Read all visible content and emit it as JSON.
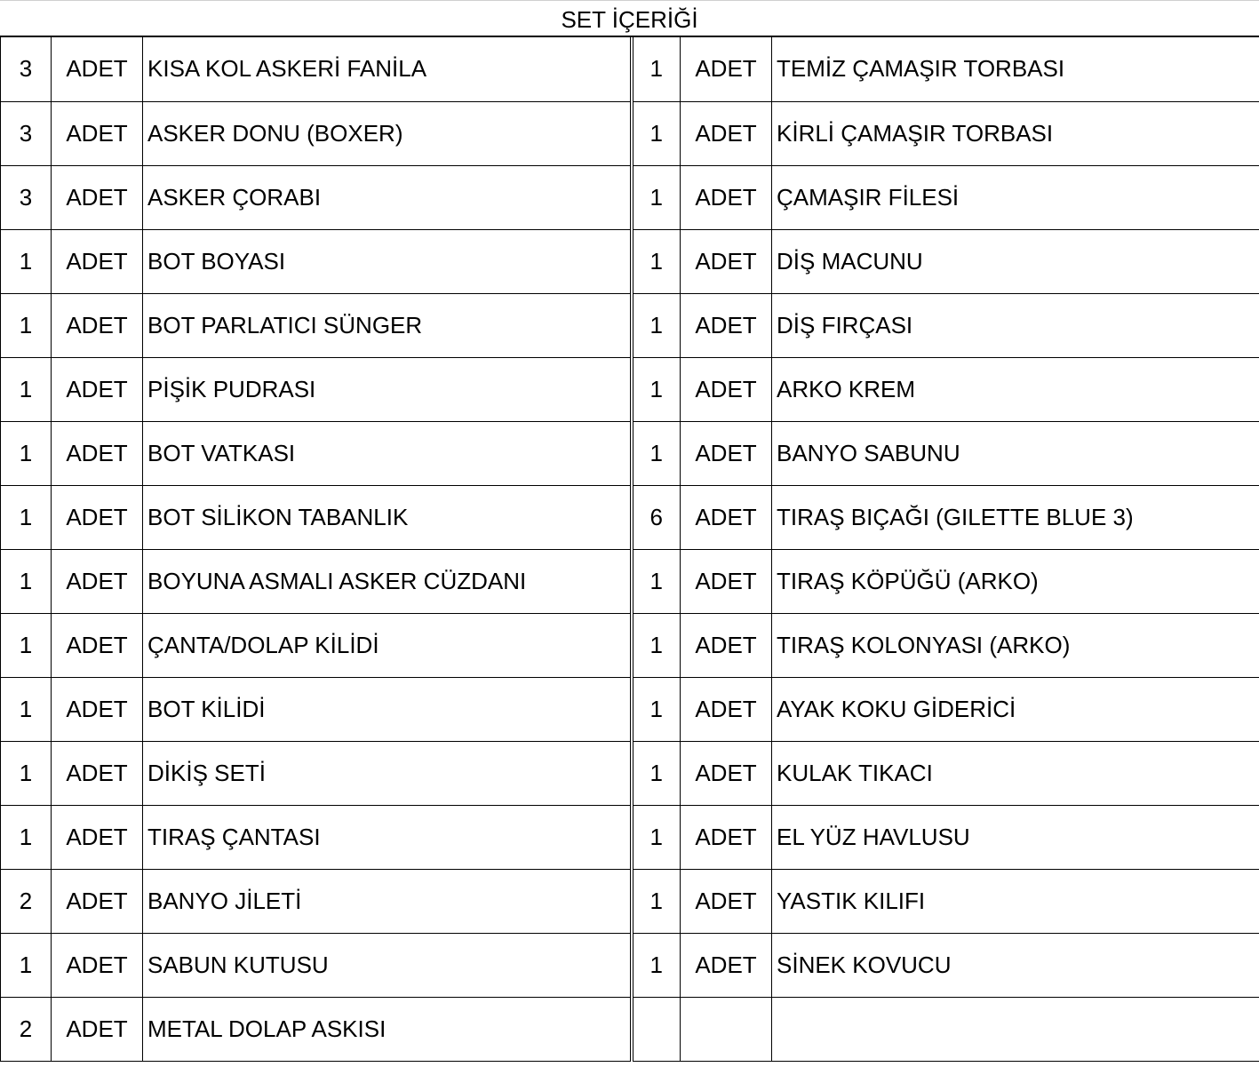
{
  "title": "SET İÇERİĞİ",
  "left": [
    {
      "qty": "3",
      "unit": "ADET",
      "name": "KISA KOL ASKERİ FANİLA"
    },
    {
      "qty": "3",
      "unit": "ADET",
      "name": "ASKER DONU (BOXER)"
    },
    {
      "qty": "3",
      "unit": "ADET",
      "name": "ASKER ÇORABI"
    },
    {
      "qty": "1",
      "unit": "ADET",
      "name": "BOT BOYASI"
    },
    {
      "qty": "1",
      "unit": "ADET",
      "name": "BOT PARLATICI SÜNGER"
    },
    {
      "qty": "1",
      "unit": "ADET",
      "name": "PİŞİK PUDRASI"
    },
    {
      "qty": "1",
      "unit": "ADET",
      "name": "BOT VATKASI"
    },
    {
      "qty": "1",
      "unit": "ADET",
      "name": "BOT SİLİKON TABANLIK"
    },
    {
      "qty": "1",
      "unit": "ADET",
      "name": "BOYUNA ASMALI ASKER CÜZDANI"
    },
    {
      "qty": "1",
      "unit": "ADET",
      "name": "ÇANTA/DOLAP KİLİDİ"
    },
    {
      "qty": "1",
      "unit": "ADET",
      "name": "BOT KİLİDİ"
    },
    {
      "qty": "1",
      "unit": "ADET",
      "name": "DİKİŞ SETİ"
    },
    {
      "qty": "1",
      "unit": "ADET",
      "name": "TIRAŞ ÇANTASI"
    },
    {
      "qty": "2",
      "unit": "ADET",
      "name": "BANYO JİLETİ"
    },
    {
      "qty": "1",
      "unit": "ADET",
      "name": "SABUN KUTUSU"
    },
    {
      "qty": "2",
      "unit": "ADET",
      "name": "METAL DOLAP ASKISI"
    }
  ],
  "right": [
    {
      "qty": "1",
      "unit": "ADET",
      "name": "TEMİZ ÇAMAŞIR TORBASI"
    },
    {
      "qty": "1",
      "unit": "ADET",
      "name": "KİRLİ ÇAMAŞIR TORBASI"
    },
    {
      "qty": "1",
      "unit": "ADET",
      "name": "ÇAMAŞIR FİLESİ"
    },
    {
      "qty": "1",
      "unit": "ADET",
      "name": "DİŞ MACUNU"
    },
    {
      "qty": "1",
      "unit": "ADET",
      "name": "DİŞ FIRÇASI"
    },
    {
      "qty": "1",
      "unit": "ADET",
      "name": "ARKO KREM"
    },
    {
      "qty": "1",
      "unit": "ADET",
      "name": "BANYO SABUNU"
    },
    {
      "qty": "6",
      "unit": "ADET",
      "name": "TIRAŞ BIÇAĞI (GILETTE BLUE 3)"
    },
    {
      "qty": "1",
      "unit": "ADET",
      "name": "TIRAŞ KÖPÜĞÜ (ARKO)"
    },
    {
      "qty": "1",
      "unit": "ADET",
      "name": "TIRAŞ KOLONYASI (ARKO)"
    },
    {
      "qty": "1",
      "unit": "ADET",
      "name": "AYAK KOKU GİDERİCİ"
    },
    {
      "qty": "1",
      "unit": "ADET",
      "name": "KULAK TIKACI"
    },
    {
      "qty": "1",
      "unit": "ADET",
      "name": "EL YÜZ HAVLUSU"
    },
    {
      "qty": "1",
      "unit": "ADET",
      "name": "YASTIK KILIFI"
    },
    {
      "qty": "1",
      "unit": "ADET",
      "name": "SİNEK KOVUCU"
    },
    {
      "qty": "",
      "unit": "",
      "name": ""
    }
  ]
}
